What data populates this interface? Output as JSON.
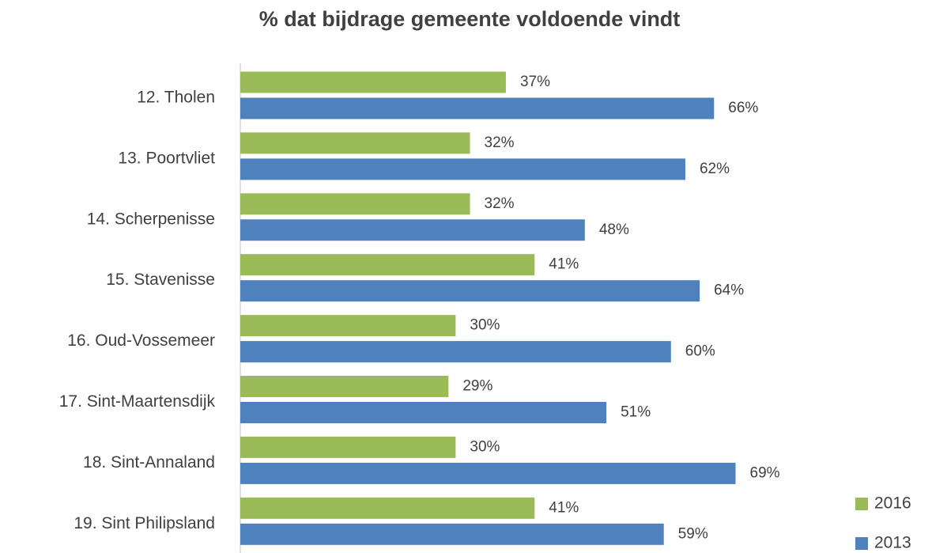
{
  "chart_data": {
    "type": "bar",
    "orientation": "horizontal",
    "title": "% dat bijdrage gemeente voldoende vindt",
    "categories": [
      "12. Tholen",
      "13. Poortvliet",
      "14. Scherpenisse",
      "15. Stavenisse",
      "16. Oud-Vossemeer",
      "17. Sint-Maartensdijk",
      "18. Sint-Annaland",
      "19. Sint Philipsland"
    ],
    "series": [
      {
        "name": "2016",
        "color": "#9bbb59",
        "values": [
          37,
          32,
          32,
          41,
          30,
          29,
          30,
          41
        ],
        "value_labels": [
          "37%",
          "32%",
          "32%",
          "41%",
          "30%",
          "29%",
          "30%",
          "41%"
        ]
      },
      {
        "name": "2013",
        "color": "#4f81bd",
        "values": [
          66,
          62,
          48,
          64,
          60,
          51,
          69,
          59
        ],
        "value_labels": [
          "66%",
          "62%",
          "48%",
          "64%",
          "60%",
          "51%",
          "69%",
          "59%"
        ]
      }
    ],
    "legend": "right"
  }
}
